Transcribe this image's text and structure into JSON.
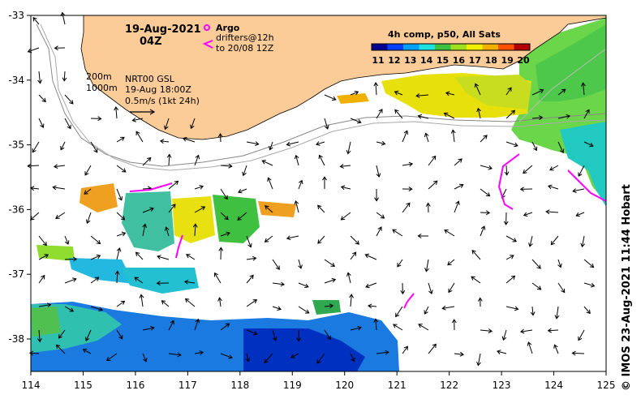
{
  "map": {
    "date": "19-Aug-2021",
    "time": "04Z",
    "legend_argo": "Argo",
    "legend_drifters_1": "drifters@12h",
    "legend_drifters_2": "to 20/08 12Z",
    "contour_200": "200m",
    "contour_1000": "1000m",
    "altimetry_1": "NRT00 GSL",
    "altimetry_2": "19-Aug 18:00Z",
    "velocity_scale": "0.5m/s (1kt 24h)",
    "colorbar_title": "4h comp, p50, All Sats",
    "colorbar_ticks": [
      "11",
      "12",
      "13",
      "14",
      "15",
      "16",
      "17",
      "18",
      "19",
      "20"
    ],
    "credit": "© IMOS 23-Aug-2021 11:44 Hobart",
    "lon_ticks": [
      "114",
      "115",
      "116",
      "117",
      "118",
      "119",
      "120",
      "121",
      "122",
      "123",
      "124",
      "125"
    ],
    "lat_ticks": [
      "-33",
      "-34",
      "-35",
      "-36",
      "-37",
      "-38"
    ],
    "colors": {
      "land": "#fbcc98",
      "argo": "#ff00ff",
      "drifters": "#ff00ff",
      "colorbar": [
        "#00008f",
        "#0040ff",
        "#00a0ff",
        "#20e0e0",
        "#40c040",
        "#a0e020",
        "#f0f000",
        "#f0b000",
        "#ff5000",
        "#b00000"
      ]
    }
  }
}
